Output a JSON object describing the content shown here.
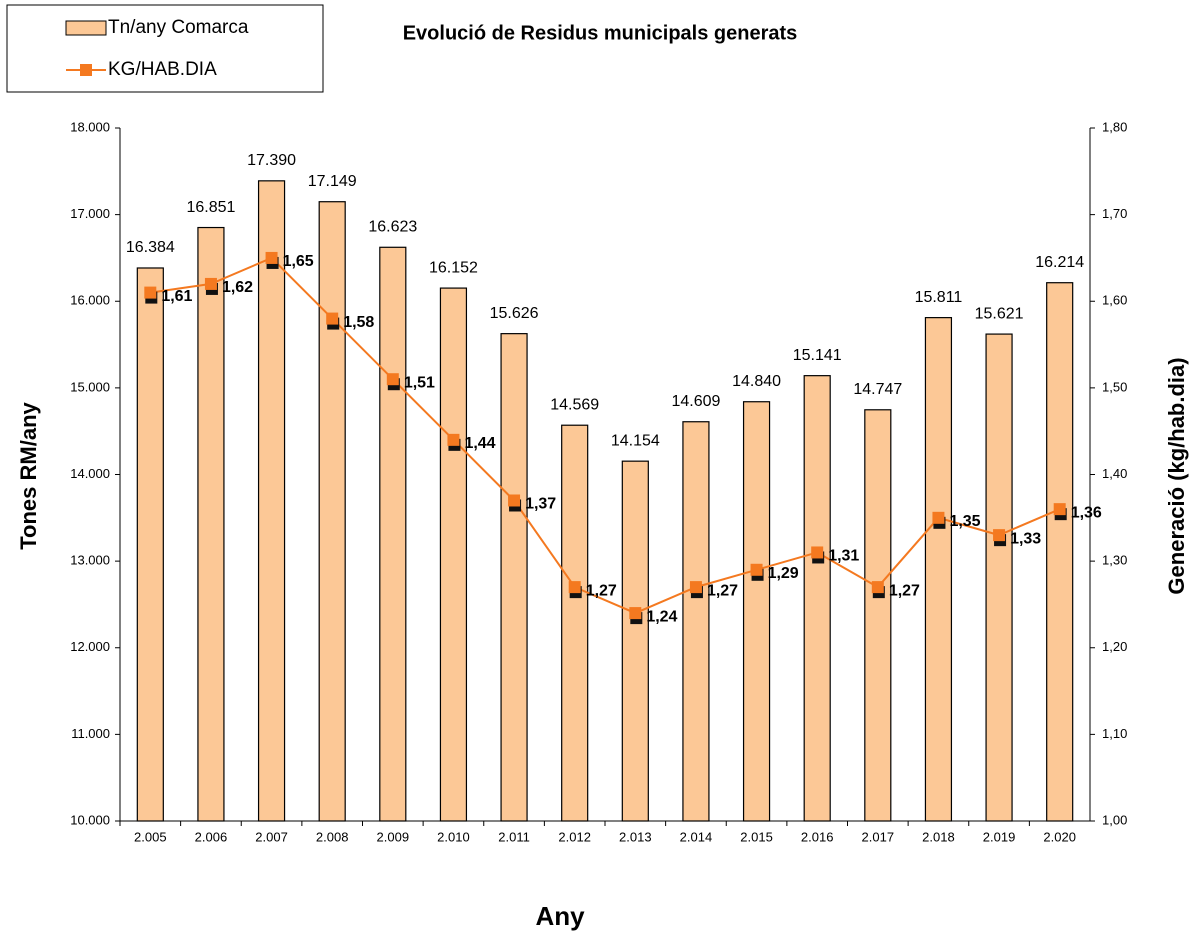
{
  "chart_data": {
    "type": "bar",
    "title": "Evolució de Residus municipals generats",
    "x_label": "Any",
    "y_label": "Tones RM/any",
    "y2_label": "Generació (kg/hab.dia)",
    "categories": [
      "2.005",
      "2.006",
      "2.007",
      "2.008",
      "2.009",
      "2.010",
      "2.011",
      "2.012",
      "2.013",
      "2.014",
      "2.015",
      "2.016",
      "2.017",
      "2.018",
      "2.019",
      "2.020"
    ],
    "series": [
      {
        "name": "Tn/any Comarca",
        "type": "bar",
        "color": "#fcc896",
        "values": [
          16384,
          16851,
          17390,
          17149,
          16623,
          16152,
          15626,
          14569,
          14154,
          14609,
          14840,
          15141,
          14747,
          15811,
          15621,
          16214
        ],
        "value_labels": [
          "16.384",
          "16.851",
          "17.390",
          "17.149",
          "16.623",
          "16.152",
          "15.626",
          "14.569",
          "14.154",
          "14.609",
          "14.840",
          "15.141",
          "14.747",
          "15.811",
          "15.621",
          "16.214"
        ]
      },
      {
        "name": "KG/HAB.DIA",
        "type": "line",
        "axis": "y2",
        "color": "#f47920",
        "values": [
          1.61,
          1.62,
          1.65,
          1.58,
          1.51,
          1.44,
          1.37,
          1.27,
          1.24,
          1.27,
          1.29,
          1.31,
          1.27,
          1.35,
          1.33,
          1.36
        ],
        "value_labels": [
          "1,61",
          "1,62",
          "1,65",
          "1,58",
          "1,51",
          "1,44",
          "1,37",
          "1,27",
          "1,24",
          "1,27",
          "1,29",
          "1,31",
          "1,27",
          "1,35",
          "1,33",
          "1,36"
        ]
      }
    ],
    "ylim": [
      10000,
      18000
    ],
    "yticks": [
      {
        "value": 10000,
        "label": "10.000"
      },
      {
        "value": 11000,
        "label": "11.000"
      },
      {
        "value": 12000,
        "label": "12.000"
      },
      {
        "value": 13000,
        "label": "13.000"
      },
      {
        "value": 14000,
        "label": "14.000"
      },
      {
        "value": 15000,
        "label": "15.000"
      },
      {
        "value": 16000,
        "label": "16.000"
      },
      {
        "value": 17000,
        "label": "17.000"
      },
      {
        "value": 18000,
        "label": "18.000"
      }
    ],
    "y2lim": [
      1.0,
      1.8
    ],
    "y2ticks": [
      {
        "value": 1.0,
        "label": "1,00"
      },
      {
        "value": 1.1,
        "label": "1,10"
      },
      {
        "value": 1.2,
        "label": "1,20"
      },
      {
        "value": 1.3,
        "label": "1,30"
      },
      {
        "value": 1.4,
        "label": "1,40"
      },
      {
        "value": 1.5,
        "label": "1,50"
      },
      {
        "value": 1.6,
        "label": "1,60"
      },
      {
        "value": 1.7,
        "label": "1,70"
      },
      {
        "value": 1.8,
        "label": "1,80"
      }
    ],
    "grid": false,
    "legend": "top-left"
  }
}
